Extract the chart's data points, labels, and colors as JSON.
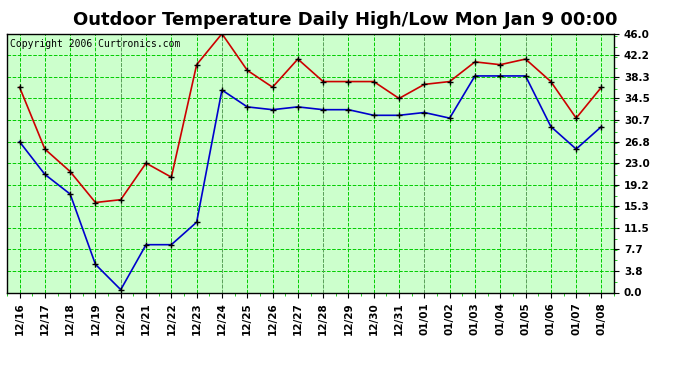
{
  "title": "Outdoor Temperature Daily High/Low Mon Jan 9 00:00",
  "copyright": "Copyright 2006 Curtronics.com",
  "x_labels": [
    "12/16",
    "12/17",
    "12/18",
    "12/19",
    "12/20",
    "12/21",
    "12/22",
    "12/23",
    "12/24",
    "12/25",
    "12/26",
    "12/27",
    "12/28",
    "12/29",
    "12/30",
    "12/31",
    "01/01",
    "01/02",
    "01/03",
    "01/04",
    "01/05",
    "01/06",
    "01/07",
    "01/08"
  ],
  "high_values": [
    36.5,
    25.5,
    21.5,
    16.0,
    16.5,
    23.0,
    20.5,
    40.5,
    46.0,
    39.5,
    36.5,
    41.5,
    37.5,
    37.5,
    37.5,
    34.5,
    37.0,
    37.5,
    41.0,
    40.5,
    41.5,
    37.5,
    31.0,
    36.5
  ],
  "low_values": [
    26.8,
    21.0,
    17.5,
    5.0,
    0.5,
    8.5,
    8.5,
    12.5,
    36.0,
    33.0,
    32.5,
    33.0,
    32.5,
    32.5,
    31.5,
    31.5,
    32.0,
    31.0,
    38.5,
    38.5,
    38.5,
    29.5,
    25.5,
    29.5
  ],
  "high_color": "#cc0000",
  "low_color": "#0000cc",
  "marker_color": "#000000",
  "bg_color": "#ffffff",
  "plot_bg_color": "#ccffcc",
  "grid_color": "#00cc00",
  "border_color": "#000000",
  "ylim": [
    0.0,
    46.0
  ],
  "yticks": [
    0.0,
    3.8,
    7.7,
    11.5,
    15.3,
    19.2,
    23.0,
    26.8,
    30.7,
    34.5,
    38.3,
    42.2,
    46.0
  ],
  "title_fontsize": 13,
  "tick_fontsize": 7.5,
  "copyright_fontsize": 7,
  "vline_positions": [
    4,
    8,
    12,
    16,
    20
  ]
}
